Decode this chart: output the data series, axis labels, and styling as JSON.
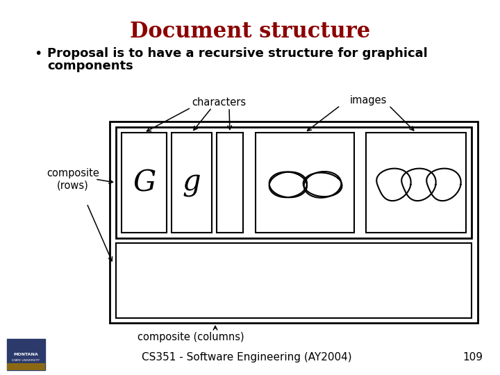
{
  "title": "Document structure",
  "title_color": "#8B0000",
  "title_fontsize": 22,
  "bullet_text_line1": "Proposal is to have a recursive structure for graphical",
  "bullet_text_line2": "components",
  "bullet_fontsize": 13,
  "footer_text": "CS351 - Software Engineering (AY2004)",
  "footer_page": "109",
  "footer_fontsize": 11,
  "bg_color": "#FFFFFF",
  "label_characters": "characters",
  "label_images": "images",
  "label_composite_rows": "composite\n(rows)",
  "label_composite_columns": "composite (columns)",
  "char_G": "G",
  "char_g": "g"
}
